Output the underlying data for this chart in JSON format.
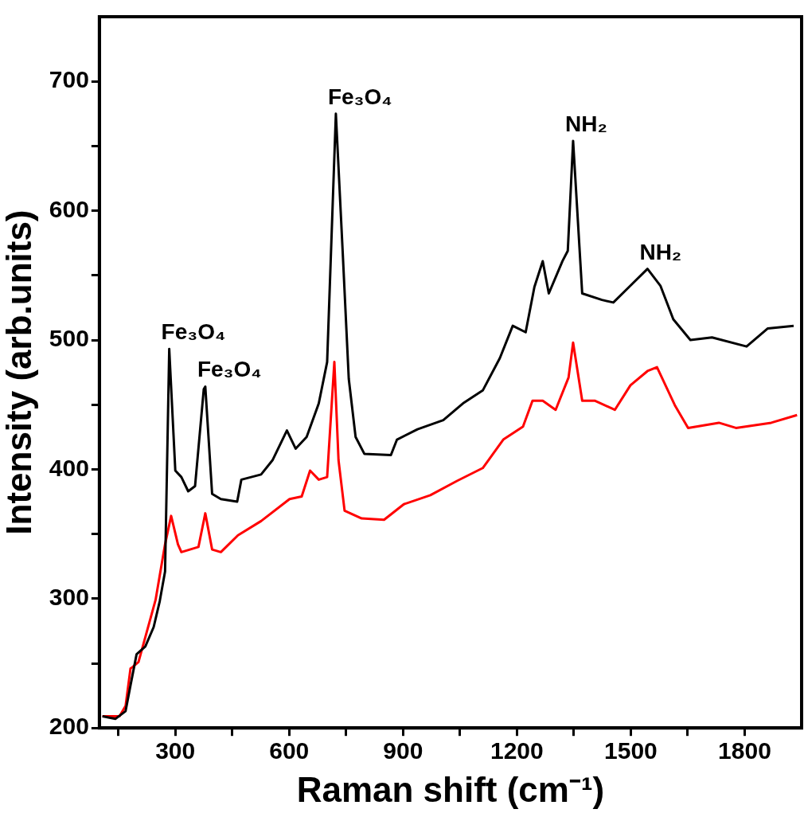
{
  "chart_data": {
    "type": "line",
    "xlabel": "Raman shift (cm⁻¹)",
    "ylabel": "Intensity (arb.units)",
    "xlim": [
      100,
      1950
    ],
    "ylim": [
      200,
      750
    ],
    "xticks": [
      {
        "value": 150,
        "label": null
      },
      300,
      {
        "value": 450,
        "label": null
      },
      600,
      {
        "value": 750,
        "label": null
      },
      900,
      {
        "value": 1050,
        "label": null
      },
      1200,
      {
        "value": 1350,
        "label": null
      },
      1500,
      {
        "value": 1650,
        "label": null
      },
      1800
    ],
    "yticks": [
      200,
      {
        "value": 250,
        "label": null
      },
      300,
      {
        "value": 350,
        "label": null
      },
      400,
      {
        "value": 450,
        "label": null
      },
      500,
      {
        "value": 550,
        "label": null
      },
      600,
      {
        "value": 650,
        "label": null
      },
      700
    ],
    "marker": "none",
    "line_style": "solid",
    "series": [
      {
        "color": "#000000",
        "x": [
          108,
          142,
          169,
          182,
          198,
          221,
          243,
          259,
          273,
          284,
          300,
          316,
          334,
          352,
          375,
          379,
          397,
          420,
          463,
          474,
          526,
          556,
          594,
          617,
          646,
          678,
          700,
          723,
          741,
          757,
          775,
          798,
          868,
          884,
          938,
          1006,
          1058,
          1110,
          1155,
          1189,
          1223,
          1246,
          1268,
          1284,
          1320,
          1334,
          1348,
          1372,
          1424,
          1454,
          1499,
          1544,
          1578,
          1612,
          1657,
          1714,
          1805,
          1861,
          1929
        ],
        "values": [
          209,
          207,
          213,
          233,
          257,
          263,
          278,
          298,
          321,
          493,
          399,
          394,
          383,
          387,
          462,
          464,
          381,
          377,
          375,
          392,
          396,
          407,
          430,
          416,
          425,
          451,
          483,
          675,
          568,
          470,
          425,
          412,
          411,
          423,
          431,
          438,
          451,
          461,
          486,
          511,
          506,
          541,
          561,
          536,
          561,
          569,
          654,
          536,
          531,
          529,
          542,
          555,
          542,
          516,
          500,
          502,
          495,
          509,
          511
        ]
      },
      {
        "color": "#ff0000",
        "x": [
          108,
          153,
          169,
          182,
          187,
          203,
          248,
          273,
          289,
          307,
          316,
          361,
          379,
          397,
          420,
          465,
          526,
          601,
          633,
          655,
          678,
          700,
          719,
          730,
          746,
          791,
          850,
          902,
          972,
          1042,
          1110,
          1164,
          1216,
          1241,
          1268,
          1302,
          1336,
          1348,
          1372,
          1406,
          1458,
          1499,
          1544,
          1569,
          1617,
          1651,
          1732,
          1777,
          1870,
          1938
        ],
        "values": [
          209,
          209,
          217,
          246,
          247,
          251,
          299,
          342,
          364,
          342,
          336,
          340,
          366,
          338,
          336,
          349,
          360,
          377,
          379,
          399,
          392,
          394,
          483,
          407,
          368,
          362,
          361,
          373,
          380,
          391,
          401,
          423,
          433,
          453,
          453,
          446,
          471,
          498,
          453,
          453,
          446,
          465,
          476,
          479,
          449,
          432,
          436,
          432,
          436,
          442
        ]
      }
    ],
    "annotations": [
      {
        "text": "Fe₃O₄",
        "x": 284,
        "y": 493
      },
      {
        "text": "Fe₃O₄",
        "x": 379,
        "y": 464
      },
      {
        "text": "Fe₃O₄",
        "x": 723,
        "y": 675
      },
      {
        "text": "NH₂",
        "x": 1348,
        "y": 654
      },
      {
        "text": "NH₂",
        "x": 1544,
        "y": 555
      }
    ]
  }
}
